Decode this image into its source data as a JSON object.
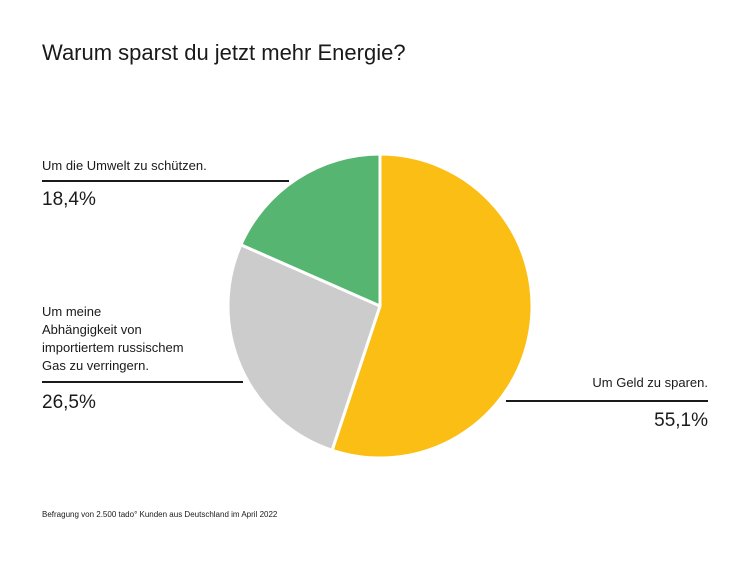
{
  "chart_data": {
    "type": "pie",
    "title": "Warum sparst du jetzt mehr Energie?",
    "slices": [
      {
        "label": "Um Geld zu sparen.",
        "value": 55.1,
        "value_label": "55,1%",
        "color": "#FBBE14"
      },
      {
        "label": "Um meine\nAbhängigkeit von\nimportiertem russischem\nGas zu verringern.",
        "value": 26.5,
        "value_label": "26,5%",
        "color": "#CCCCCC"
      },
      {
        "label": "Um die Umwelt zu schützen.",
        "value": 18.4,
        "value_label": "18,4%",
        "color": "#56B671"
      }
    ],
    "footnote": "Befragung von 2.500 tado° Kunden aus Deutschland im April 2022"
  }
}
